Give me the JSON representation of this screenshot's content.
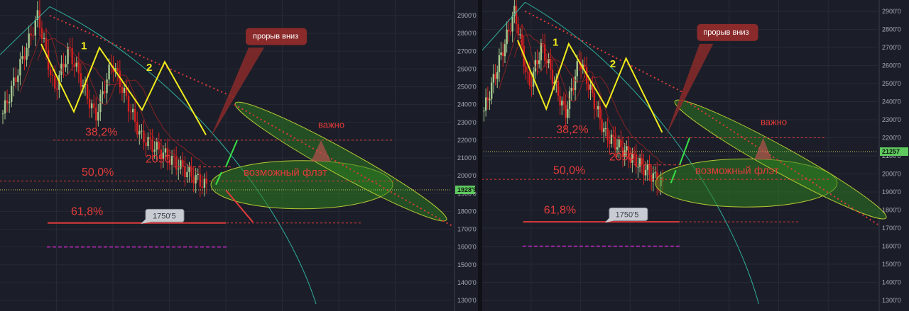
{
  "colors": {
    "background": "#1b1e28",
    "grid": "#262a35",
    "bull": "#a6c88e",
    "bear": "#d42020",
    "fib_red": "#e23a3a",
    "wave_yellow": "#f2ec1d",
    "trend_teal": "#2fb0a0",
    "flat_green": "#2e7d1f",
    "support_magenta": "#c828c8",
    "arrow_green": "#39e046"
  },
  "chart_data": [
    {
      "type": "candlestick",
      "title": "",
      "yaxis_ticks": [
        "2900'0",
        "2800'0",
        "2700'0",
        "2600'0",
        "2500'0",
        "2400'0",
        "2300'0",
        "2200'0",
        "2100'0",
        "2000'0",
        "1900'0",
        "1800'0",
        "1700'0",
        "1600'0",
        "1500'0",
        "1400'0",
        "1300'0"
      ],
      "current_price_label": "1928'9",
      "callout": "прорыв вниз",
      "fib_labels": [
        "38,2%",
        "50,0%",
        "61,8%"
      ],
      "level_label": "2050",
      "box_label": "1750'5",
      "zone_label": "возможный флэт",
      "important_label": "важно",
      "wave_labels": [
        "1",
        "2"
      ]
    },
    {
      "type": "candlestick",
      "title": "",
      "yaxis_ticks": [
        "2900'0",
        "2800'0",
        "2700'0",
        "2600'0",
        "2500'0",
        "2400'0",
        "2300'0",
        "2200'0",
        "2100'0",
        "2000'0",
        "1900'0",
        "1800'0",
        "1700'0",
        "1600'0",
        "1500'0",
        "1400'0",
        "1300'0"
      ],
      "current_price_label": "21257",
      "callout": "прорыв вниз",
      "fib_labels": [
        "38,2%",
        "50,0%",
        "61,8%"
      ],
      "level_label": "2050",
      "box_label": "1750'5",
      "zone_label": "возможный флэт",
      "important_label": "важно",
      "wave_labels": [
        "1",
        "2"
      ]
    }
  ]
}
